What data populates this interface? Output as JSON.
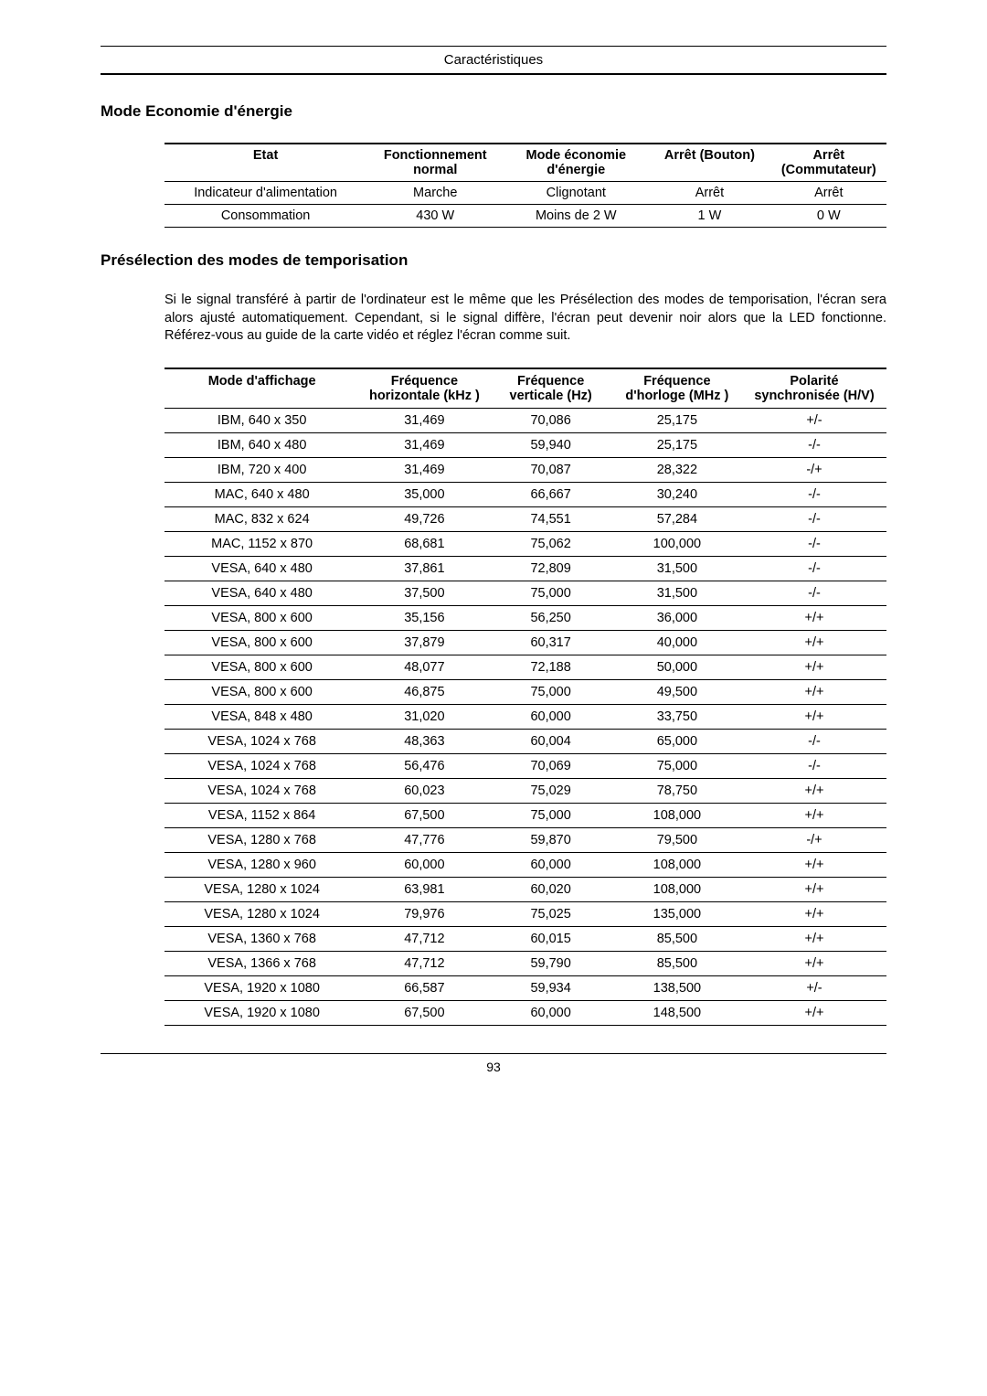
{
  "header": {
    "running_title": "Caractéristiques"
  },
  "section1": {
    "title": "Mode Economie d'énergie",
    "table": {
      "columns": [
        "Etat",
        "Fonctionnement normal",
        "Mode économie d'énergie",
        "Arrêt (Bouton)",
        "Arrêt (Commutateur)"
      ],
      "rows": [
        [
          "Indicateur d'alimentation",
          "Marche",
          "Clignotant",
          "Arrêt",
          "Arrêt"
        ],
        [
          "Consommation",
          "430 W",
          "Moins de 2 W",
          "1 W",
          "0 W"
        ]
      ]
    }
  },
  "section2": {
    "title": "Présélection des modes de temporisation",
    "intro": "Si le signal transféré à partir de l'ordinateur est le même que les Présélection des modes de temporisation, l'écran sera alors ajusté automatiquement. Cependant, si le signal diffère, l'écran peut devenir noir alors que la LED fonctionne. Référez-vous au guide de la carte vidéo et réglez l'écran comme suit.",
    "table": {
      "columns": [
        "Mode d'affichage",
        "Fréquence horizontale (kHz )",
        "Fréquence verticale (Hz)",
        "Fréquence d'horloge (MHz )",
        "Polarité synchronisée (H/V)"
      ],
      "rows": [
        [
          "IBM, 640 x 350",
          "31,469",
          "70,086",
          "25,175",
          "+/-"
        ],
        [
          "IBM, 640 x 480",
          "31,469",
          "59,940",
          "25,175",
          "-/-"
        ],
        [
          "IBM, 720 x 400",
          "31,469",
          "70,087",
          "28,322",
          "-/+"
        ],
        [
          "MAC, 640 x 480",
          "35,000",
          "66,667",
          "30,240",
          "-/-"
        ],
        [
          "MAC, 832 x 624",
          "49,726",
          "74,551",
          "57,284",
          "-/-"
        ],
        [
          "MAC, 1152 x 870",
          "68,681",
          "75,062",
          "100,000",
          "-/-"
        ],
        [
          "VESA, 640 x 480",
          "37,861",
          "72,809",
          "31,500",
          "-/-"
        ],
        [
          "VESA, 640 x 480",
          "37,500",
          "75,000",
          "31,500",
          "-/-"
        ],
        [
          "VESA, 800 x 600",
          "35,156",
          "56,250",
          "36,000",
          "+/+"
        ],
        [
          "VESA, 800 x 600",
          "37,879",
          "60,317",
          "40,000",
          "+/+"
        ],
        [
          "VESA, 800 x 600",
          "48,077",
          "72,188",
          "50,000",
          "+/+"
        ],
        [
          "VESA, 800 x 600",
          "46,875",
          "75,000",
          "49,500",
          "+/+"
        ],
        [
          "VESA, 848 x 480",
          "31,020",
          "60,000",
          "33,750",
          "+/+"
        ],
        [
          "VESA, 1024 x 768",
          "48,363",
          "60,004",
          "65,000",
          "-/-"
        ],
        [
          "VESA, 1024 x 768",
          "56,476",
          "70,069",
          "75,000",
          "-/-"
        ],
        [
          "VESA, 1024 x 768",
          "60,023",
          "75,029",
          "78,750",
          "+/+"
        ],
        [
          "VESA, 1152 x 864",
          "67,500",
          "75,000",
          "108,000",
          "+/+"
        ],
        [
          "VESA, 1280 x 768",
          "47,776",
          "59,870",
          "79,500",
          "-/+"
        ],
        [
          "VESA, 1280 x 960",
          "60,000",
          "60,000",
          "108,000",
          "+/+"
        ],
        [
          "VESA, 1280 x 1024",
          "63,981",
          "60,020",
          "108,000",
          "+/+"
        ],
        [
          "VESA, 1280 x 1024",
          "79,976",
          "75,025",
          "135,000",
          "+/+"
        ],
        [
          "VESA, 1360 x 768",
          "47,712",
          "60,015",
          "85,500",
          "+/+"
        ],
        [
          "VESA, 1366 x 768",
          "47,712",
          "59,790",
          "85,500",
          "+/+"
        ],
        [
          "VESA, 1920 x 1080",
          "66,587",
          "59,934",
          "138,500",
          "+/-"
        ],
        [
          "VESA, 1920 x 1080",
          "67,500",
          "60,000",
          "148,500",
          "+/+"
        ]
      ]
    }
  },
  "footer": {
    "page_number": "93"
  }
}
